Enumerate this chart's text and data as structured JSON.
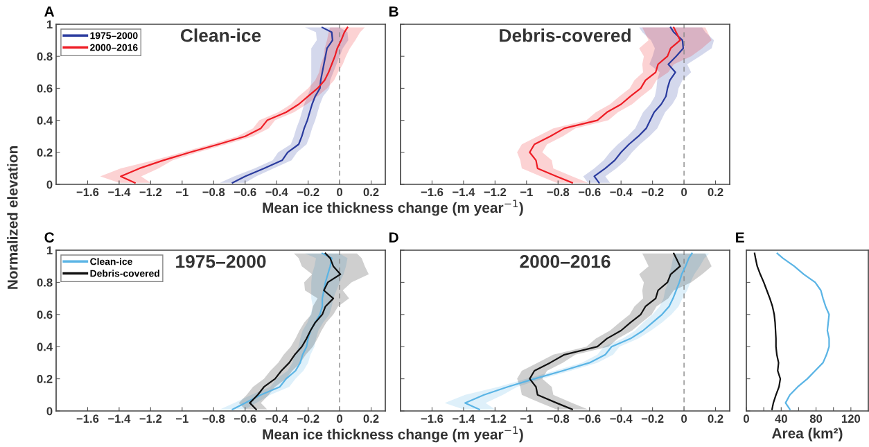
{
  "chart_data": [
    {
      "type": "line",
      "orientation": "horizontal",
      "title": "Clean-ice",
      "annotations": [
        "A"
      ],
      "xlabel": "Mean ice thickness change (m year$^{−1}$)",
      "ylabel": "Normalized elevation",
      "xlim": [
        -1.8,
        0.29
      ],
      "xticks": [
        {
          "value": -1.6,
          "label": "−1.6"
        },
        {
          "value": -1.4,
          "label": "−1.4"
        },
        {
          "value": -1.2,
          "label": "−1.2"
        },
        {
          "value": -1,
          "label": "−1"
        },
        {
          "value": -0.8,
          "label": "−0.8"
        },
        {
          "value": -0.6,
          "label": "−0.6"
        },
        {
          "value": -0.4,
          "label": "−0.4"
        },
        {
          "value": -0.2,
          "label": "−0.2"
        },
        0,
        0.2
      ],
      "ylim": [
        0,
        1
      ],
      "yticks": [
        0,
        0.2,
        0.4,
        0.6,
        0.8,
        1
      ],
      "legend": "top left",
      "grid": false,
      "ref_lines": [
        {
          "axis": "x",
          "value": 0,
          "color": "#888888",
          "line_style": "dashed"
        }
      ],
      "series": [
        {
          "name": "1975–2000",
          "color": "#2a3b9e",
          "x": [
            0.01,
            0.05,
            0.1,
            0.15,
            0.2,
            0.25,
            0.3,
            0.35,
            0.4,
            0.45,
            0.5,
            0.55,
            0.6,
            0.65,
            0.7,
            0.75,
            0.8,
            0.85,
            0.9,
            0.95,
            0.98
          ],
          "values": [
            -0.68,
            -0.6,
            -0.48,
            -0.365,
            -0.33,
            -0.26,
            -0.24,
            -0.225,
            -0.205,
            -0.19,
            -0.175,
            -0.155,
            -0.125,
            -0.12,
            -0.11,
            -0.1,
            -0.09,
            -0.08,
            -0.045,
            -0.05,
            -0.11
          ],
          "lower": [
            -0.76,
            -0.67,
            -0.54,
            -0.425,
            -0.39,
            -0.31,
            -0.29,
            -0.275,
            -0.255,
            -0.24,
            -0.225,
            -0.205,
            -0.185,
            -0.18,
            -0.18,
            -0.18,
            -0.18,
            -0.18,
            -0.145,
            -0.15,
            -0.22
          ],
          "upper": [
            -0.6,
            -0.53,
            -0.42,
            -0.305,
            -0.27,
            -0.21,
            -0.19,
            -0.175,
            -0.155,
            -0.14,
            -0.125,
            -0.105,
            -0.065,
            -0.06,
            -0.04,
            -0.02,
            0.0,
            0.02,
            0.055,
            0.05,
            0.0
          ]
        },
        {
          "name": "2000–2016",
          "color": "#ee1c24",
          "x": [
            0.01,
            0.05,
            0.1,
            0.15,
            0.2,
            0.25,
            0.3,
            0.35,
            0.4,
            0.45,
            0.5,
            0.55,
            0.6,
            0.65,
            0.7,
            0.75,
            0.8,
            0.85,
            0.9,
            0.95,
            0.98
          ],
          "values": [
            -1.3,
            -1.39,
            -1.27,
            -1.12,
            -0.95,
            -0.77,
            -0.6,
            -0.5,
            -0.46,
            -0.34,
            -0.26,
            -0.2,
            -0.14,
            -0.095,
            -0.07,
            -0.05,
            -0.03,
            -0.015,
            0.01,
            0.03,
            0.05
          ],
          "lower": [
            -1.4,
            -1.52,
            -1.39,
            -1.18,
            -1.0,
            -0.82,
            -0.65,
            -0.55,
            -0.51,
            -0.39,
            -0.31,
            -0.26,
            -0.2,
            -0.155,
            -0.13,
            -0.12,
            -0.1,
            -0.095,
            -0.08,
            -0.07,
            -0.06
          ],
          "upper": [
            -1.2,
            -1.26,
            -1.15,
            -1.06,
            -0.9,
            -0.72,
            -0.55,
            -0.45,
            -0.41,
            -0.29,
            -0.21,
            -0.14,
            -0.08,
            -0.035,
            -0.01,
            0.02,
            0.04,
            0.065,
            0.1,
            0.13,
            0.16
          ]
        }
      ]
    },
    {
      "type": "line",
      "orientation": "horizontal",
      "title": "Debris-covered",
      "annotations": [
        "B"
      ],
      "tick_labels": "x",
      "xlim": [
        -1.8,
        0.29
      ],
      "xticks": [
        {
          "value": -1.6,
          "label": "−1.6"
        },
        {
          "value": -1.4,
          "label": "−1.4"
        },
        {
          "value": -1.2,
          "label": "−1.2"
        },
        {
          "value": -1,
          "label": "−1"
        },
        {
          "value": -0.8,
          "label": "−0.8"
        },
        {
          "value": -0.6,
          "label": "−0.6"
        },
        {
          "value": -0.4,
          "label": "−0.4"
        },
        {
          "value": -0.2,
          "label": "−0.2"
        },
        0,
        0.2
      ],
      "ylim": [
        0,
        1
      ],
      "yticks": [
        0,
        0.2,
        0.4,
        0.6,
        0.8,
        1
      ],
      "grid": false,
      "ref_lines": [
        {
          "axis": "x",
          "value": 0,
          "color": "#888888",
          "line_style": "dashed"
        }
      ],
      "series": [
        {
          "color": "#2a3b9e",
          "x": [
            0.01,
            0.05,
            0.1,
            0.15,
            0.2,
            0.25,
            0.3,
            0.35,
            0.4,
            0.45,
            0.5,
            0.55,
            0.6,
            0.65,
            0.7,
            0.75,
            0.8,
            0.85,
            0.9,
            0.95,
            0.98
          ],
          "values": [
            -0.54,
            -0.57,
            -0.5,
            -0.44,
            -0.4,
            -0.35,
            -0.29,
            -0.24,
            -0.215,
            -0.19,
            -0.145,
            -0.115,
            -0.105,
            -0.09,
            -0.055,
            -0.1,
            -0.05,
            -0.005,
            -0.01,
            -0.065,
            -0.085
          ],
          "lower": [
            -0.61,
            -0.64,
            -0.57,
            -0.51,
            -0.47,
            -0.42,
            -0.36,
            -0.31,
            -0.285,
            -0.26,
            -0.215,
            -0.185,
            -0.175,
            -0.17,
            -0.155,
            -0.22,
            -0.2,
            -0.185,
            -0.21,
            -0.265,
            -0.285
          ],
          "upper": [
            -0.47,
            -0.5,
            -0.43,
            -0.37,
            -0.33,
            -0.28,
            -0.22,
            -0.17,
            -0.145,
            -0.12,
            -0.075,
            -0.045,
            -0.035,
            -0.01,
            0.045,
            0.02,
            0.1,
            0.175,
            0.19,
            0.135,
            0.115
          ]
        },
        {
          "color": "#ee1c24",
          "x": [
            0.01,
            0.05,
            0.1,
            0.15,
            0.2,
            0.25,
            0.3,
            0.35,
            0.4,
            0.45,
            0.5,
            0.55,
            0.6,
            0.65,
            0.7,
            0.75,
            0.8,
            0.85,
            0.9,
            0.95,
            0.98
          ],
          "values": [
            -0.71,
            -0.81,
            -0.93,
            -0.94,
            -0.98,
            -0.95,
            -0.85,
            -0.76,
            -0.55,
            -0.49,
            -0.4,
            -0.34,
            -0.275,
            -0.245,
            -0.18,
            -0.165,
            -0.105,
            -0.085,
            -0.025,
            -0.05,
            -0.065
          ],
          "lower": [
            -0.81,
            -0.91,
            -1.03,
            -1.04,
            -1.06,
            -1.03,
            -0.93,
            -0.83,
            -0.62,
            -0.56,
            -0.47,
            -0.41,
            -0.345,
            -0.315,
            -0.26,
            -0.265,
            -0.255,
            -0.285,
            -0.225,
            -0.25,
            -0.265
          ],
          "upper": [
            -0.61,
            -0.71,
            -0.83,
            -0.84,
            -0.9,
            -0.87,
            -0.77,
            -0.69,
            -0.48,
            -0.42,
            -0.33,
            -0.27,
            -0.205,
            -0.175,
            -0.1,
            -0.065,
            0.045,
            0.115,
            0.175,
            0.15,
            0.135
          ]
        }
      ]
    },
    {
      "type": "line",
      "orientation": "horizontal",
      "title": "1975–2000",
      "annotations": [
        "C"
      ],
      "xlabel": "Mean ice thickness change (m year$^{−1}$)",
      "xlim": [
        -1.8,
        0.29
      ],
      "xticks": [
        {
          "value": -1.6,
          "label": "−1.6"
        },
        {
          "value": -1.4,
          "label": "−1.4"
        },
        {
          "value": -1.2,
          "label": "−1.2"
        },
        {
          "value": -1,
          "label": "−1"
        },
        {
          "value": -0.8,
          "label": "−0.8"
        },
        {
          "value": -0.6,
          "label": "−0.6"
        },
        {
          "value": -0.4,
          "label": "−0.4"
        },
        {
          "value": -0.2,
          "label": "−0.2"
        },
        0,
        0.2
      ],
      "ylim": [
        0,
        1
      ],
      "yticks": [
        0,
        0.2,
        0.4,
        0.6,
        0.8,
        1
      ],
      "legend": "top left",
      "grid": false,
      "ref_lines": [
        {
          "axis": "x",
          "value": 0,
          "color": "#888888",
          "line_style": "dashed"
        }
      ],
      "series": [
        {
          "name": "Clean-ice",
          "color": "#5ab4e5",
          "x": [
            0.01,
            0.05,
            0.1,
            0.15,
            0.2,
            0.25,
            0.3,
            0.35,
            0.4,
            0.45,
            0.5,
            0.55,
            0.6,
            0.65,
            0.7,
            0.75,
            0.8,
            0.85,
            0.9,
            0.95,
            0.98
          ],
          "values": [
            -0.68,
            -0.6,
            -0.5,
            -0.38,
            -0.34,
            -0.28,
            -0.25,
            -0.235,
            -0.21,
            -0.2,
            -0.185,
            -0.155,
            -0.125,
            -0.11,
            -0.11,
            -0.1,
            -0.09,
            -0.075,
            -0.06,
            -0.05,
            -0.11
          ],
          "lower": [
            -0.76,
            -0.67,
            -0.56,
            -0.44,
            -0.4,
            -0.33,
            -0.3,
            -0.285,
            -0.26,
            -0.25,
            -0.235,
            -0.205,
            -0.185,
            -0.17,
            -0.18,
            -0.18,
            -0.18,
            -0.175,
            -0.16,
            -0.15,
            -0.22
          ],
          "upper": [
            -0.6,
            -0.53,
            -0.44,
            -0.32,
            -0.28,
            -0.23,
            -0.2,
            -0.185,
            -0.16,
            -0.15,
            -0.135,
            -0.105,
            -0.065,
            -0.05,
            -0.04,
            -0.02,
            0.0,
            0.025,
            0.04,
            0.05,
            0.0
          ]
        },
        {
          "name": "Debris-covered",
          "color": "#111111",
          "x": [
            0.01,
            0.05,
            0.1,
            0.15,
            0.2,
            0.25,
            0.3,
            0.35,
            0.4,
            0.45,
            0.5,
            0.55,
            0.6,
            0.65,
            0.7,
            0.75,
            0.8,
            0.85,
            0.9,
            0.95,
            0.98
          ],
          "values": [
            -0.53,
            -0.57,
            -0.52,
            -0.48,
            -0.41,
            -0.37,
            -0.32,
            -0.285,
            -0.24,
            -0.21,
            -0.185,
            -0.155,
            -0.11,
            -0.09,
            -0.04,
            -0.1,
            -0.075,
            0.005,
            -0.04,
            -0.06,
            -0.09
          ],
          "lower": [
            -0.6,
            -0.64,
            -0.59,
            -0.55,
            -0.48,
            -0.44,
            -0.39,
            -0.355,
            -0.31,
            -0.28,
            -0.255,
            -0.225,
            -0.18,
            -0.17,
            -0.14,
            -0.22,
            -0.225,
            -0.175,
            -0.24,
            -0.26,
            -0.29
          ],
          "upper": [
            -0.46,
            -0.5,
            -0.45,
            -0.41,
            -0.34,
            -0.3,
            -0.25,
            -0.215,
            -0.17,
            -0.14,
            -0.115,
            -0.085,
            -0.04,
            -0.01,
            0.06,
            0.02,
            0.075,
            0.185,
            0.16,
            0.14,
            0.11
          ]
        }
      ]
    },
    {
      "type": "line",
      "orientation": "horizontal",
      "title": "2000–2016",
      "annotations": [
        "D"
      ],
      "tick_labels": "x",
      "xlim": [
        -1.8,
        0.29
      ],
      "xticks": [
        {
          "value": -1.6,
          "label": "−1.6"
        },
        {
          "value": -1.4,
          "label": "−1.4"
        },
        {
          "value": -1.2,
          "label": "−1.2"
        },
        {
          "value": -1,
          "label": "−1"
        },
        {
          "value": -0.8,
          "label": "−0.8"
        },
        {
          "value": -0.6,
          "label": "−0.6"
        },
        {
          "value": -0.4,
          "label": "−0.4"
        },
        {
          "value": -0.2,
          "label": "−0.2"
        },
        0,
        0.2
      ],
      "ylim": [
        0,
        1
      ],
      "yticks": [
        0,
        0.2,
        0.4,
        0.6,
        0.8,
        1
      ],
      "grid": false,
      "ref_lines": [
        {
          "axis": "x",
          "value": 0,
          "color": "#888888",
          "line_style": "dashed"
        }
      ],
      "series": [
        {
          "color": "#5ab4e5",
          "x": [
            0.01,
            0.05,
            0.1,
            0.15,
            0.2,
            0.25,
            0.3,
            0.35,
            0.4,
            0.45,
            0.5,
            0.55,
            0.6,
            0.65,
            0.7,
            0.75,
            0.8,
            0.85,
            0.9,
            0.95,
            0.98
          ],
          "values": [
            -1.3,
            -1.39,
            -1.27,
            -1.12,
            -0.95,
            -0.77,
            -0.6,
            -0.5,
            -0.46,
            -0.34,
            -0.26,
            -0.2,
            -0.14,
            -0.095,
            -0.07,
            -0.05,
            -0.03,
            -0.015,
            0.01,
            0.03,
            0.05
          ],
          "lower": [
            -1.4,
            -1.52,
            -1.39,
            -1.18,
            -1.0,
            -0.82,
            -0.65,
            -0.55,
            -0.51,
            -0.39,
            -0.31,
            -0.26,
            -0.2,
            -0.155,
            -0.13,
            -0.12,
            -0.1,
            -0.095,
            -0.08,
            -0.07,
            -0.06
          ],
          "upper": [
            -1.2,
            -1.26,
            -1.15,
            -1.06,
            -0.9,
            -0.72,
            -0.55,
            -0.45,
            -0.41,
            -0.29,
            -0.21,
            -0.14,
            -0.08,
            -0.035,
            -0.01,
            0.02,
            0.04,
            0.065,
            0.1,
            0.13,
            0.16
          ]
        },
        {
          "color": "#111111",
          "x": [
            0.01,
            0.05,
            0.1,
            0.15,
            0.2,
            0.25,
            0.3,
            0.35,
            0.4,
            0.45,
            0.5,
            0.55,
            0.6,
            0.65,
            0.7,
            0.75,
            0.8,
            0.85,
            0.9,
            0.95,
            0.98
          ],
          "values": [
            -0.71,
            -0.81,
            -0.93,
            -0.94,
            -0.98,
            -0.95,
            -0.85,
            -0.76,
            -0.55,
            -0.49,
            -0.4,
            -0.34,
            -0.275,
            -0.245,
            -0.18,
            -0.165,
            -0.105,
            -0.085,
            -0.025,
            -0.05,
            -0.065
          ],
          "lower": [
            -0.81,
            -0.91,
            -1.03,
            -1.04,
            -1.06,
            -1.03,
            -0.93,
            -0.83,
            -0.62,
            -0.56,
            -0.47,
            -0.41,
            -0.345,
            -0.315,
            -0.26,
            -0.265,
            -0.255,
            -0.285,
            -0.225,
            -0.25,
            -0.265
          ],
          "upper": [
            -0.61,
            -0.71,
            -0.83,
            -0.84,
            -0.9,
            -0.87,
            -0.77,
            -0.69,
            -0.48,
            -0.42,
            -0.33,
            -0.27,
            -0.205,
            -0.175,
            -0.1,
            -0.065,
            0.045,
            0.115,
            0.175,
            0.15,
            0.135
          ]
        }
      ]
    },
    {
      "type": "line",
      "orientation": "horizontal",
      "annotations": [
        "E"
      ],
      "xlabel": "Area (km²)",
      "tick_labels": "x",
      "xlim": [
        0,
        140
      ],
      "xticks": [
        0,
        {
          "value": 20,
          "label": null
        },
        40,
        {
          "value": 60,
          "label": null
        },
        80,
        {
          "value": 100,
          "label": null
        },
        120
      ],
      "ylim": [
        0,
        1
      ],
      "yticks": [
        0,
        0.2,
        0.4,
        0.6,
        0.8,
        1
      ],
      "grid": false,
      "series": [
        {
          "color": "#111111",
          "x": [
            0.01,
            0.05,
            0.1,
            0.15,
            0.2,
            0.25,
            0.3,
            0.35,
            0.4,
            0.45,
            0.5,
            0.55,
            0.6,
            0.65,
            0.7,
            0.75,
            0.8,
            0.85,
            0.9,
            0.95,
            0.98
          ],
          "values": [
            29.5,
            31,
            34,
            37.5,
            39,
            36,
            37,
            35,
            34,
            34,
            33.5,
            33,
            32,
            30,
            27,
            23.5,
            20,
            16,
            12.5,
            10.5,
            9.5
          ]
        },
        {
          "color": "#5ab4e5",
          "x": [
            0.01,
            0.05,
            0.1,
            0.15,
            0.2,
            0.25,
            0.3,
            0.35,
            0.4,
            0.45,
            0.5,
            0.55,
            0.6,
            0.65,
            0.7,
            0.75,
            0.8,
            0.85,
            0.9,
            0.95,
            0.98
          ],
          "values": [
            50,
            45,
            50,
            59,
            70,
            79,
            88,
            92,
            95,
            95,
            93,
            94,
            95,
            91,
            88,
            85.5,
            79,
            66,
            55,
            42,
            35.5
          ]
        }
      ]
    }
  ]
}
